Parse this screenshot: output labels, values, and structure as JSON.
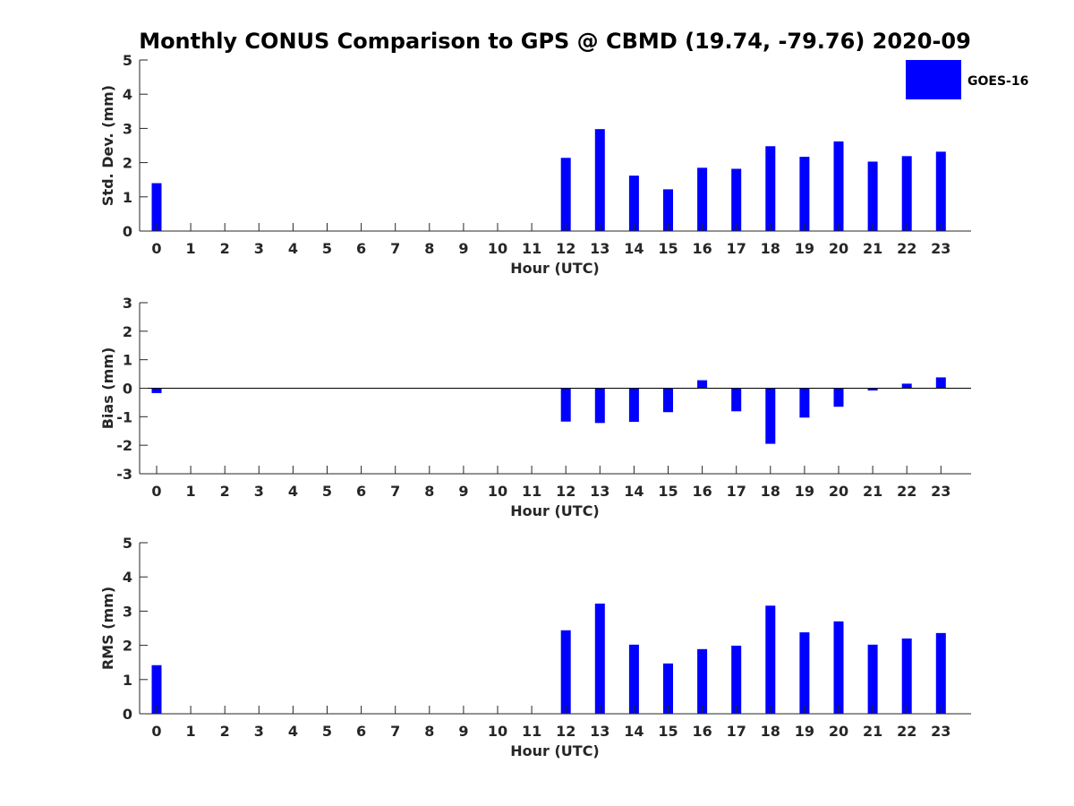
{
  "title": "Monthly CONUS Comparison to GPS @ CBMD (19.74, -79.76) 2020-09",
  "colors": {
    "bar": "#0000ff",
    "axis": "#262626",
    "background": "#ffffff"
  },
  "legend": {
    "label": "GOES-16",
    "position": "top-right"
  },
  "chart_data": [
    {
      "type": "bar",
      "categories": [
        "0",
        "1",
        "2",
        "3",
        "4",
        "5",
        "6",
        "7",
        "8",
        "9",
        "10",
        "11",
        "12",
        "13",
        "14",
        "15",
        "16",
        "17",
        "18",
        "19",
        "20",
        "21",
        "22",
        "23"
      ],
      "series": [
        {
          "name": "GOES-16",
          "values": [
            1.4,
            null,
            null,
            null,
            null,
            null,
            null,
            null,
            null,
            null,
            null,
            null,
            2.14,
            2.98,
            1.62,
            1.22,
            1.85,
            1.82,
            2.48,
            2.17,
            2.62,
            2.03,
            2.19,
            2.32
          ]
        }
      ],
      "xlabel": "Hour (UTC)",
      "ylabel": "Std. Dev. (mm)",
      "ylim": [
        0,
        5
      ],
      "yticks": [
        0,
        1,
        2,
        3,
        4,
        5
      ],
      "grid": false
    },
    {
      "type": "bar",
      "categories": [
        "0",
        "1",
        "2",
        "3",
        "4",
        "5",
        "6",
        "7",
        "8",
        "9",
        "10",
        "11",
        "12",
        "13",
        "14",
        "15",
        "16",
        "17",
        "18",
        "19",
        "20",
        "21",
        "22",
        "23"
      ],
      "series": [
        {
          "name": "GOES-16",
          "values": [
            -0.17,
            null,
            null,
            null,
            null,
            null,
            null,
            null,
            null,
            null,
            null,
            null,
            -1.17,
            -1.22,
            -1.18,
            -0.84,
            0.28,
            -0.81,
            -1.95,
            -1.03,
            -0.65,
            -0.08,
            0.16,
            0.38
          ]
        }
      ],
      "xlabel": "Hour (UTC)",
      "ylabel": "Bias (mm)",
      "ylim": [
        -3,
        3
      ],
      "yticks": [
        -3,
        -2,
        -1,
        0,
        1,
        2,
        3
      ],
      "grid": false,
      "zero_line": true
    },
    {
      "type": "bar",
      "categories": [
        "0",
        "1",
        "2",
        "3",
        "4",
        "5",
        "6",
        "7",
        "8",
        "9",
        "10",
        "11",
        "12",
        "13",
        "14",
        "15",
        "16",
        "17",
        "18",
        "19",
        "20",
        "21",
        "22",
        "23"
      ],
      "series": [
        {
          "name": "GOES-16",
          "values": [
            1.42,
            null,
            null,
            null,
            null,
            null,
            null,
            null,
            null,
            null,
            null,
            null,
            2.44,
            3.22,
            2.02,
            1.47,
            1.89,
            1.99,
            3.16,
            2.38,
            2.7,
            2.02,
            2.2,
            2.36
          ]
        }
      ],
      "xlabel": "Hour (UTC)",
      "ylabel": "RMS (mm)",
      "ylim": [
        0,
        5
      ],
      "yticks": [
        0,
        1,
        2,
        3,
        4,
        5
      ],
      "grid": false
    }
  ]
}
